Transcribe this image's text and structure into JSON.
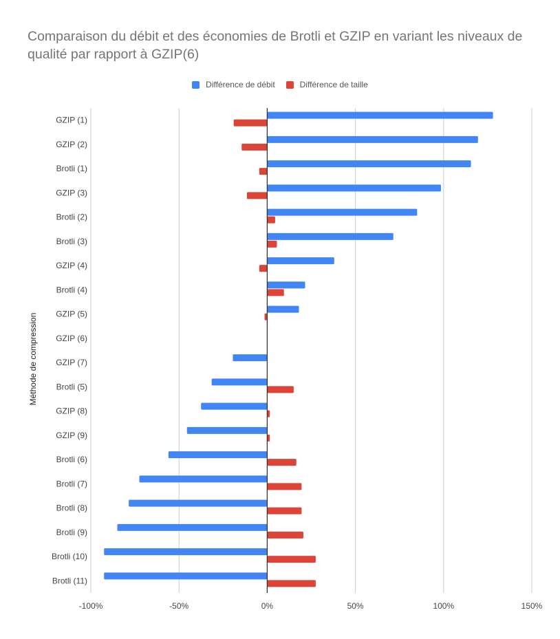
{
  "chart_data": {
    "type": "bar",
    "orientation": "horizontal",
    "title": "Comparaison du débit et des économies de Brotli et GZIP en variant les niveaux de qualité par rapport à GZIP(6)",
    "xlabel": "",
    "ylabel": "Méthode de compression",
    "xlim": [
      -100,
      150
    ],
    "xticks": [
      -100,
      -50,
      0,
      50,
      100,
      150
    ],
    "xtick_labels": [
      "-100%",
      "-50%",
      "0%",
      "50%",
      "100%",
      "150%"
    ],
    "grid": true,
    "legend_position": "top",
    "categories": [
      "GZIP (1)",
      "GZIP (2)",
      "Brotli (1)",
      "GZIP (3)",
      "Brotli (2)",
      "Brotli (3)",
      "GZIP (4)",
      "Brotli (4)",
      "GZIP (5)",
      "GZIP (6)",
      "GZIP (7)",
      "Brotli (5)",
      "GZIP (8)",
      "GZIP (9)",
      "Brotli (6)",
      "Brotli (7)",
      "Brotli (8)",
      "Brotli (9)",
      "Brotli (10)",
      "Brotli (11)"
    ],
    "series": [
      {
        "name": "Différence de débit",
        "color": "#4285f4",
        "values": [
          128,
          119.5,
          115.5,
          98.5,
          85,
          71.5,
          38,
          21.5,
          18,
          0,
          -19.5,
          -31.5,
          -37.5,
          -45.5,
          -56,
          -72.5,
          -78.5,
          -85,
          -92.5,
          -92.5
        ]
      },
      {
        "name": "Différence de taille",
        "color": "#db4437",
        "values": [
          -19,
          -14.5,
          -4.5,
          -11.5,
          4.5,
          5.5,
          -4.5,
          9.5,
          -1.5,
          0,
          0,
          15,
          1.5,
          1.5,
          16.5,
          19.5,
          19.5,
          20.5,
          27.5,
          27.5
        ]
      }
    ]
  }
}
